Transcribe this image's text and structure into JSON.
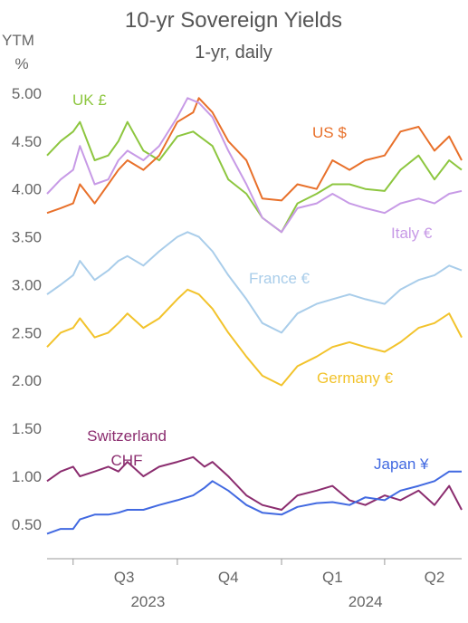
{
  "chart_data": {
    "type": "line",
    "title": "10-yr Sovereign Yields",
    "subtitle": "1-yr, daily",
    "ylabel": [
      "YTM",
      "%"
    ],
    "ylim": [
      0.3,
      5.0
    ],
    "y_ticks": [
      "5.00",
      "4.50",
      "4.00",
      "3.50",
      "3.00",
      "2.50",
      "2.00",
      "1.50",
      "1.00",
      "0.50"
    ],
    "x_range": [
      "2023-06-08",
      "2024-06-08"
    ],
    "x_ticks": [
      "Q3",
      "Q4",
      "Q1",
      "Q2"
    ],
    "x_year_labels": [
      "2023",
      "2024"
    ],
    "x_major_ticks": [
      "2023-07-01",
      "2023-10-01",
      "2024-01-01",
      "2024-04-01"
    ],
    "x_label_dates": [
      "2023-08-15",
      "2023-11-15",
      "2024-02-15",
      "2024-05-15"
    ],
    "year_label_dates": [
      "2023-09-05",
      "2024-03-15"
    ],
    "grid": false,
    "legend": "inline labels",
    "series": [
      {
        "name": "UK £",
        "color": "#8dc63f",
        "x": [
          "2023-06-08",
          "2023-06-20",
          "2023-07-01",
          "2023-07-07",
          "2023-07-20",
          "2023-08-01",
          "2023-08-10",
          "2023-08-18",
          "2023-09-01",
          "2023-09-15",
          "2023-10-01",
          "2023-10-15",
          "2023-11-01",
          "2023-11-15",
          "2023-12-01",
          "2023-12-15",
          "2024-01-01",
          "2024-01-15",
          "2024-02-01",
          "2024-02-15",
          "2024-03-01",
          "2024-03-15",
          "2024-04-01",
          "2024-04-15",
          "2024-05-01",
          "2024-05-15",
          "2024-05-28",
          "2024-06-08"
        ],
        "y": [
          4.35,
          4.5,
          4.6,
          4.7,
          4.3,
          4.35,
          4.5,
          4.7,
          4.4,
          4.3,
          4.55,
          4.6,
          4.45,
          4.1,
          3.95,
          3.7,
          3.55,
          3.85,
          3.95,
          4.05,
          4.05,
          4.0,
          3.98,
          4.2,
          4.35,
          4.1,
          4.3,
          4.2
        ]
      },
      {
        "name": "US $",
        "color": "#e8702a",
        "x": [
          "2023-06-08",
          "2023-06-20",
          "2023-07-01",
          "2023-07-07",
          "2023-07-20",
          "2023-08-01",
          "2023-08-10",
          "2023-08-18",
          "2023-09-01",
          "2023-09-15",
          "2023-10-01",
          "2023-10-15",
          "2023-10-20",
          "2023-11-01",
          "2023-11-15",
          "2023-12-01",
          "2023-12-15",
          "2024-01-01",
          "2024-01-15",
          "2024-02-01",
          "2024-02-15",
          "2024-03-01",
          "2024-03-15",
          "2024-04-01",
          "2024-04-15",
          "2024-05-01",
          "2024-05-15",
          "2024-05-28",
          "2024-06-08"
        ],
        "y": [
          3.75,
          3.8,
          3.85,
          4.05,
          3.85,
          4.05,
          4.2,
          4.3,
          4.2,
          4.35,
          4.7,
          4.8,
          4.95,
          4.8,
          4.5,
          4.3,
          3.9,
          3.88,
          4.05,
          4.0,
          4.3,
          4.2,
          4.3,
          4.35,
          4.6,
          4.65,
          4.4,
          4.55,
          4.3
        ]
      },
      {
        "name": "Italy €",
        "color": "#c79ae6",
        "x": [
          "2023-06-08",
          "2023-06-20",
          "2023-07-01",
          "2023-07-07",
          "2023-07-20",
          "2023-08-01",
          "2023-08-10",
          "2023-08-18",
          "2023-09-01",
          "2023-09-15",
          "2023-10-01",
          "2023-10-10",
          "2023-10-20",
          "2023-11-01",
          "2023-11-15",
          "2023-12-01",
          "2023-12-15",
          "2024-01-01",
          "2024-01-15",
          "2024-02-01",
          "2024-02-15",
          "2024-03-01",
          "2024-03-15",
          "2024-04-01",
          "2024-04-15",
          "2024-05-01",
          "2024-05-15",
          "2024-05-28",
          "2024-06-08"
        ],
        "y": [
          3.95,
          4.1,
          4.2,
          4.45,
          4.05,
          4.1,
          4.3,
          4.4,
          4.3,
          4.45,
          4.75,
          4.95,
          4.9,
          4.75,
          4.4,
          4.05,
          3.7,
          3.55,
          3.8,
          3.85,
          3.95,
          3.85,
          3.8,
          3.75,
          3.85,
          3.9,
          3.85,
          3.95,
          3.98
        ]
      },
      {
        "name": "France €",
        "color": "#a9cdea",
        "x": [
          "2023-06-08",
          "2023-06-20",
          "2023-07-01",
          "2023-07-07",
          "2023-07-20",
          "2023-08-01",
          "2023-08-10",
          "2023-08-18",
          "2023-09-01",
          "2023-09-15",
          "2023-10-01",
          "2023-10-10",
          "2023-10-20",
          "2023-11-01",
          "2023-11-15",
          "2023-12-01",
          "2023-12-15",
          "2024-01-01",
          "2024-01-15",
          "2024-02-01",
          "2024-02-15",
          "2024-03-01",
          "2024-03-15",
          "2024-04-01",
          "2024-04-15",
          "2024-05-01",
          "2024-05-15",
          "2024-05-28",
          "2024-06-08"
        ],
        "y": [
          2.9,
          3.0,
          3.1,
          3.25,
          3.05,
          3.15,
          3.25,
          3.3,
          3.2,
          3.35,
          3.5,
          3.55,
          3.5,
          3.35,
          3.1,
          2.85,
          2.6,
          2.5,
          2.7,
          2.8,
          2.85,
          2.9,
          2.85,
          2.8,
          2.95,
          3.05,
          3.1,
          3.2,
          3.15
        ]
      },
      {
        "name": "Germany €",
        "color": "#f2c32c",
        "x": [
          "2023-06-08",
          "2023-06-20",
          "2023-07-01",
          "2023-07-07",
          "2023-07-20",
          "2023-08-01",
          "2023-08-10",
          "2023-08-18",
          "2023-09-01",
          "2023-09-15",
          "2023-10-01",
          "2023-10-10",
          "2023-10-20",
          "2023-11-01",
          "2023-11-15",
          "2023-12-01",
          "2023-12-15",
          "2024-01-01",
          "2024-01-15",
          "2024-02-01",
          "2024-02-15",
          "2024-03-01",
          "2024-03-15",
          "2024-04-01",
          "2024-04-15",
          "2024-05-01",
          "2024-05-15",
          "2024-05-28",
          "2024-06-08"
        ],
        "y": [
          2.35,
          2.5,
          2.55,
          2.65,
          2.45,
          2.5,
          2.6,
          2.7,
          2.55,
          2.65,
          2.85,
          2.95,
          2.9,
          2.75,
          2.5,
          2.25,
          2.05,
          1.95,
          2.15,
          2.25,
          2.35,
          2.4,
          2.35,
          2.3,
          2.4,
          2.55,
          2.6,
          2.7,
          2.45
        ]
      },
      {
        "name": "Switzerland CHF",
        "color": "#8b2d6f",
        "x": [
          "2023-06-08",
          "2023-06-20",
          "2023-07-01",
          "2023-07-07",
          "2023-07-20",
          "2023-08-01",
          "2023-08-10",
          "2023-08-18",
          "2023-09-01",
          "2023-09-15",
          "2023-10-01",
          "2023-10-15",
          "2023-10-25",
          "2023-11-01",
          "2023-11-15",
          "2023-12-01",
          "2023-12-15",
          "2024-01-01",
          "2024-01-15",
          "2024-02-01",
          "2024-02-15",
          "2024-03-01",
          "2024-03-15",
          "2024-04-01",
          "2024-04-15",
          "2024-05-01",
          "2024-05-15",
          "2024-05-28",
          "2024-06-08"
        ],
        "y": [
          0.95,
          1.05,
          1.1,
          1.0,
          1.05,
          1.1,
          1.05,
          1.15,
          1.0,
          1.1,
          1.15,
          1.2,
          1.1,
          1.15,
          1.0,
          0.8,
          0.7,
          0.65,
          0.8,
          0.85,
          0.9,
          0.75,
          0.7,
          0.8,
          0.75,
          0.85,
          0.7,
          0.9,
          0.65
        ]
      },
      {
        "name": "Japan ¥",
        "color": "#4169e1",
        "x": [
          "2023-06-08",
          "2023-06-20",
          "2023-07-01",
          "2023-07-07",
          "2023-07-20",
          "2023-08-01",
          "2023-08-10",
          "2023-08-18",
          "2023-09-01",
          "2023-09-15",
          "2023-10-01",
          "2023-10-15",
          "2023-10-25",
          "2023-11-01",
          "2023-11-15",
          "2023-12-01",
          "2023-12-15",
          "2024-01-01",
          "2024-01-15",
          "2024-02-01",
          "2024-02-15",
          "2024-03-01",
          "2024-03-15",
          "2024-04-01",
          "2024-04-15",
          "2024-05-01",
          "2024-05-15",
          "2024-05-28",
          "2024-06-08"
        ],
        "y": [
          0.4,
          0.45,
          0.45,
          0.55,
          0.6,
          0.6,
          0.62,
          0.65,
          0.65,
          0.7,
          0.75,
          0.8,
          0.88,
          0.95,
          0.85,
          0.7,
          0.62,
          0.6,
          0.68,
          0.72,
          0.73,
          0.7,
          0.78,
          0.75,
          0.85,
          0.9,
          0.95,
          1.05,
          1.05
        ]
      }
    ]
  }
}
